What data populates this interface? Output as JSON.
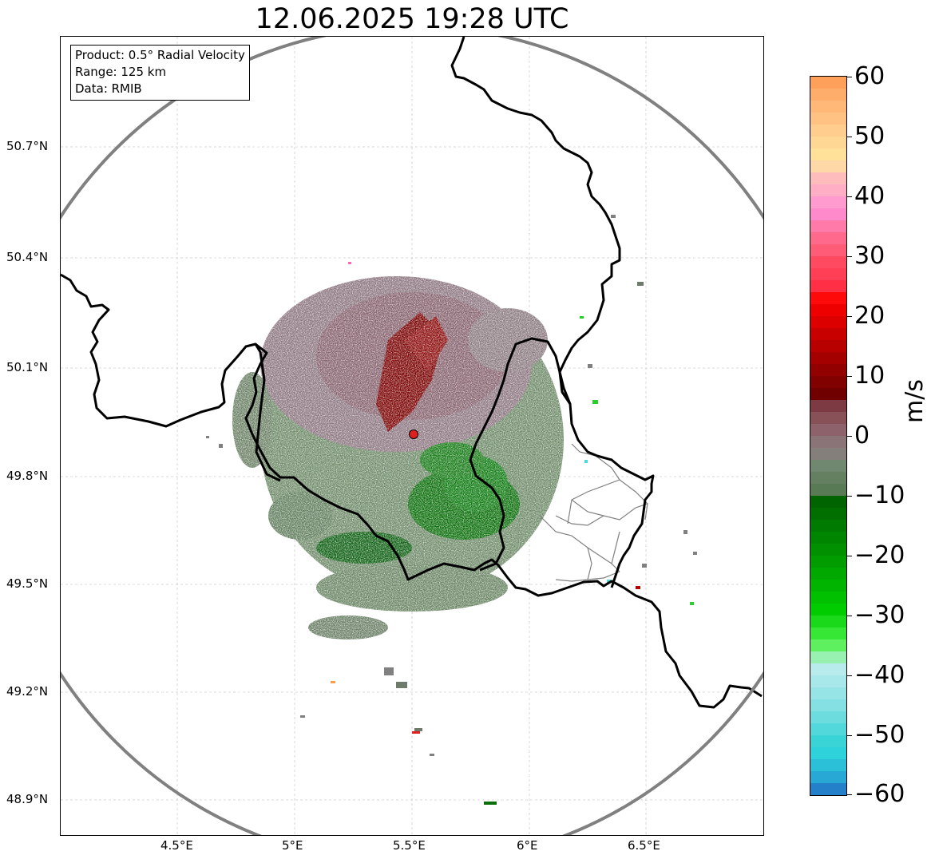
{
  "title": "12.06.2025 19:28 UTC",
  "info": {
    "product": "Product: 0.5° Radial Velocity",
    "range": "Range: 125 km",
    "source": "Data: RMIB"
  },
  "lat_ticks": [
    "50.7°N",
    "50.4°N",
    "50.1°N",
    "49.8°N",
    "49.5°N",
    "49.2°N",
    "48.9°N"
  ],
  "lon_ticks": [
    "4.5°E",
    "5°E",
    "5.5°E",
    "6°E",
    "6.5°E"
  ],
  "colorbar": {
    "label": "m/s",
    "ticks": [
      "60",
      "50",
      "40",
      "30",
      "20",
      "10",
      "0",
      "−10",
      "−20",
      "−30",
      "−40",
      "−50",
      "−60"
    ],
    "min": -60,
    "max": 60
  },
  "radar_site": {
    "name": "radar-site",
    "lon": 5.505,
    "lat": 49.914
  },
  "colors": {
    "range_ring": "#808080",
    "grid": "#c0c0c0",
    "border": "#000000",
    "site_marker": "#e0201e"
  }
}
